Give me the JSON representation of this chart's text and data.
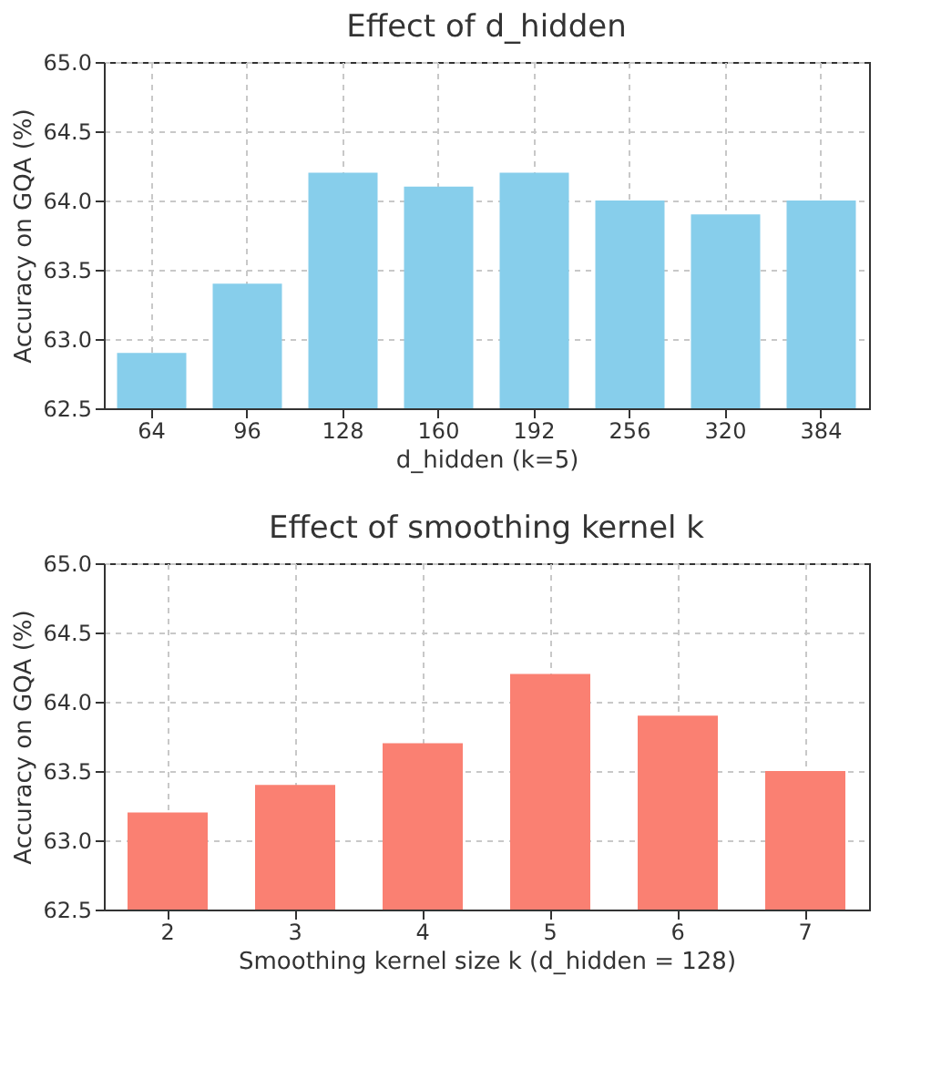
{
  "chart_data": [
    {
      "type": "bar",
      "title": "Effect of d_hidden",
      "xlabel": "d_hidden (k=5)",
      "ylabel": "Accuracy on GQA (%)",
      "categories": [
        "64",
        "96",
        "128",
        "160",
        "192",
        "256",
        "320",
        "384"
      ],
      "values": [
        62.9,
        63.4,
        64.2,
        64.1,
        64.2,
        64.0,
        63.9,
        64.0
      ],
      "color": "#87ceeb",
      "ylim": [
        62.5,
        65.0
      ],
      "yticks": [
        62.5,
        {
          "value": 63,
          "label": "63.0"
        },
        63.5,
        {
          "value": 64,
          "label": "64.0"
        },
        64.5,
        {
          "value": 65,
          "label": "65.0"
        }
      ],
      "grid": true
    },
    {
      "type": "bar",
      "title": "Effect of smoothing kernel k",
      "xlabel": "Smoothing kernel size k (d_hidden = 128)",
      "ylabel": "Accuracy on GQA (%)",
      "categories": [
        "2",
        "3",
        "4",
        "5",
        "6",
        "7"
      ],
      "values": [
        63.2,
        63.4,
        63.7,
        64.2,
        63.9,
        63.5
      ],
      "color": "#fa8072",
      "ylim": [
        62.5,
        65.0
      ],
      "yticks": [
        62.5,
        {
          "value": 63,
          "label": "63.0"
        },
        63.5,
        {
          "value": 64,
          "label": "64.0"
        },
        64.5,
        {
          "value": 65,
          "label": "65.0"
        }
      ],
      "grid": true
    }
  ]
}
